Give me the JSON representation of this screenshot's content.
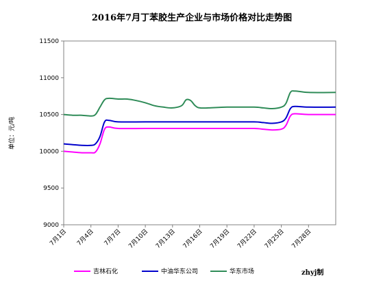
{
  "chart_data": {
    "type": "line",
    "title": "2016年7月丁苯胶生产企业与市场价格对比走势图",
    "ylabel": "单位：元/吨",
    "xlabel": "",
    "ylim": [
      9000,
      11500
    ],
    "yticks": [
      9000,
      9500,
      10000,
      10500,
      11000,
      11500
    ],
    "x_range": [
      1,
      31
    ],
    "xticks": [
      {
        "x": 1,
        "label": "7月1日"
      },
      {
        "x": 4,
        "label": "7月4日"
      },
      {
        "x": 7,
        "label": "7月7日"
      },
      {
        "x": 10,
        "label": "7月10日"
      },
      {
        "x": 13,
        "label": "7月13日"
      },
      {
        "x": 16,
        "label": "7月16日"
      },
      {
        "x": 19,
        "label": "7月19日"
      },
      {
        "x": 22,
        "label": "7月22日"
      },
      {
        "x": 25,
        "label": "7月25日"
      },
      {
        "x": 28,
        "label": "7月28日"
      }
    ],
    "grid": false,
    "legend_position": "bottom",
    "series": [
      {
        "name": "吉林石化",
        "color": "#ff00ff",
        "points": [
          [
            1,
            10000
          ],
          [
            2,
            9990
          ],
          [
            3,
            9980
          ],
          [
            4,
            9980
          ],
          [
            4.5,
            9990
          ],
          [
            5,
            10100
          ],
          [
            5.5,
            10300
          ],
          [
            6,
            10330
          ],
          [
            7,
            10310
          ],
          [
            10,
            10310
          ],
          [
            13,
            10310
          ],
          [
            16,
            10310
          ],
          [
            19,
            10310
          ],
          [
            22,
            10310
          ],
          [
            23,
            10300
          ],
          [
            24,
            10290
          ],
          [
            25,
            10300
          ],
          [
            25.5,
            10350
          ],
          [
            26,
            10480
          ],
          [
            26.5,
            10510
          ],
          [
            28,
            10500
          ],
          [
            31,
            10500
          ]
        ]
      },
      {
        "name": "中油华东公司",
        "color": "#0000cc",
        "points": [
          [
            1,
            10100
          ],
          [
            2,
            10090
          ],
          [
            3,
            10080
          ],
          [
            4,
            10080
          ],
          [
            4.5,
            10100
          ],
          [
            5,
            10200
          ],
          [
            5.5,
            10400
          ],
          [
            6,
            10420
          ],
          [
            7,
            10400
          ],
          [
            10,
            10400
          ],
          [
            13,
            10400
          ],
          [
            16,
            10400
          ],
          [
            19,
            10400
          ],
          [
            22,
            10400
          ],
          [
            23,
            10390
          ],
          [
            24,
            10380
          ],
          [
            25,
            10400
          ],
          [
            25.5,
            10450
          ],
          [
            26,
            10580
          ],
          [
            26.5,
            10610
          ],
          [
            28,
            10600
          ],
          [
            31,
            10600
          ]
        ]
      },
      {
        "name": "华东市场",
        "color": "#2e8b57",
        "points": [
          [
            1,
            10500
          ],
          [
            2,
            10490
          ],
          [
            3,
            10490
          ],
          [
            4,
            10480
          ],
          [
            4.5,
            10500
          ],
          [
            5,
            10600
          ],
          [
            5.5,
            10700
          ],
          [
            6,
            10720
          ],
          [
            7,
            10710
          ],
          [
            8,
            10710
          ],
          [
            9,
            10690
          ],
          [
            10,
            10660
          ],
          [
            11,
            10620
          ],
          [
            12,
            10600
          ],
          [
            13,
            10590
          ],
          [
            14,
            10620
          ],
          [
            14.5,
            10700
          ],
          [
            15,
            10690
          ],
          [
            15.5,
            10620
          ],
          [
            16,
            10590
          ],
          [
            17,
            10590
          ],
          [
            19,
            10600
          ],
          [
            22,
            10600
          ],
          [
            23,
            10590
          ],
          [
            24,
            10580
          ],
          [
            25,
            10600
          ],
          [
            25.5,
            10650
          ],
          [
            26,
            10800
          ],
          [
            26.5,
            10820
          ],
          [
            28,
            10800
          ],
          [
            31,
            10800
          ]
        ]
      }
    ]
  },
  "credit": "zhyj制"
}
